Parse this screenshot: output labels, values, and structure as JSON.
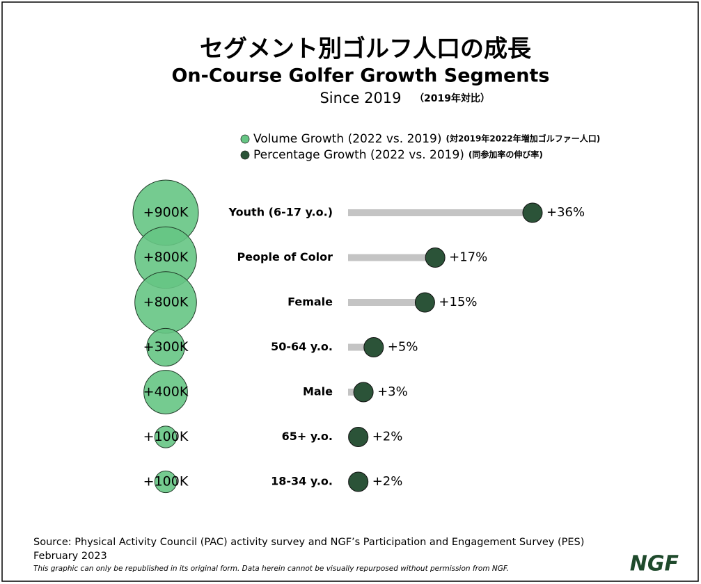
{
  "chart_data": {
    "type": "lollipop",
    "title": "セグメント別ゴルフ人口の成長",
    "subtitle": "On-Course Golfer Growth Segments",
    "since": "Since 2019",
    "since_ja": "（2019年対比）",
    "categories": [
      "Youth (6-17 y.o.)",
      "People of Color",
      "Female",
      "50-64 y.o.",
      "Male",
      "65+ y.o.",
      "18-34 y.o."
    ],
    "series": [
      {
        "name": "Volume Growth (2022 vs. 2019)",
        "name_ja": "(対2019年2022年増加ゴルファー人口)",
        "color": "#66c584",
        "values": [
          900000,
          800000,
          800000,
          300000,
          400000,
          100000,
          100000
        ],
        "value_labels": [
          "+900K",
          "+800K",
          "+800K",
          "+300K",
          "+400K",
          "+100K",
          "+100K"
        ]
      },
      {
        "name": "Percentage Growth (2022 vs. 2019)",
        "name_ja": "(同参加率の伸び率)",
        "color": "#2b5338",
        "values": [
          36,
          17,
          15,
          5,
          3,
          2,
          2
        ],
        "value_labels": [
          "+36%",
          "+17%",
          "+15%",
          "+5%",
          "+3%",
          "+2%",
          "+2%"
        ]
      }
    ],
    "bar_color": "#c4c4c4",
    "source": "Source: Physical Activity Council (PAC) activity survey and NGF’s Participation and Engagement Survey (PES)",
    "date": "February 2023",
    "disclaimer": "This graphic can only be republished in its original form. Data herein cannot be visually repurposed without permission from NGF.",
    "logo": "NGF"
  }
}
